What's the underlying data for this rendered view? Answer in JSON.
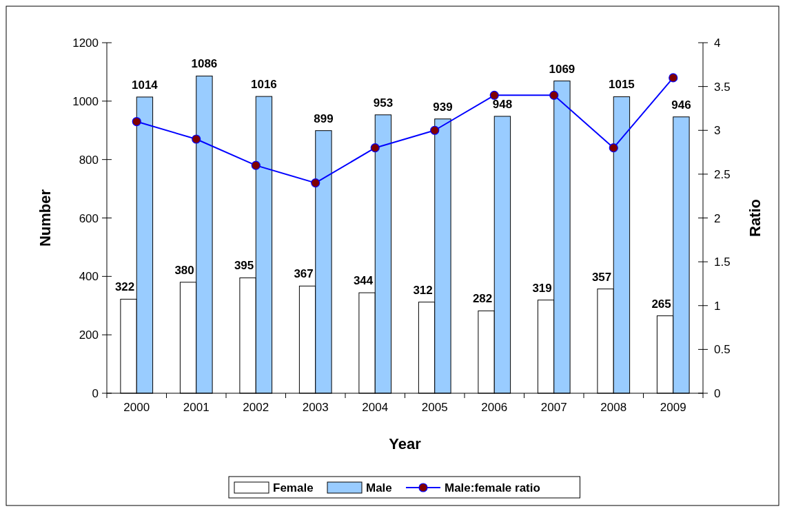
{
  "chart_data": {
    "type": "bar",
    "xlabel": "Year",
    "ylabel": "Number",
    "y2label": "Ratio",
    "categories": [
      "2000",
      "2001",
      "2002",
      "2003",
      "2004",
      "2005",
      "2006",
      "2007",
      "2008",
      "2009"
    ],
    "series": [
      {
        "name": "Female",
        "color": "#ffffff",
        "values": [
          322,
          380,
          395,
          367,
          344,
          312,
          282,
          319,
          357,
          265
        ],
        "value_labels": [
          "322",
          "380",
          "395",
          "367",
          "344",
          "312",
          "282",
          "319",
          "357",
          "265"
        ]
      },
      {
        "name": "Male",
        "color": "#99ccff",
        "values": [
          1014,
          1086,
          1016,
          899,
          953,
          939,
          948,
          1069,
          1015,
          946
        ],
        "value_labels": [
          "1014",
          "1086",
          "1016",
          "899",
          "953",
          "939",
          "948",
          "1069",
          "1015",
          "946"
        ]
      },
      {
        "name": "Male:female ratio",
        "type": "line",
        "axis": "y2",
        "color": "#0000ff",
        "marker": "circle",
        "values": [
          3.1,
          2.9,
          2.6,
          2.4,
          2.8,
          3.0,
          3.4,
          3.4,
          2.8,
          3.6
        ]
      }
    ],
    "ylim": [
      0,
      1200
    ],
    "yticks": [
      0,
      200,
      400,
      600,
      800,
      1000,
      1200
    ],
    "y2lim": [
      0,
      4
    ],
    "y2ticks": [
      0,
      0.5,
      1,
      1.5,
      2,
      2.5,
      3,
      3.5,
      4
    ],
    "grid": false,
    "legend": "bottom"
  }
}
